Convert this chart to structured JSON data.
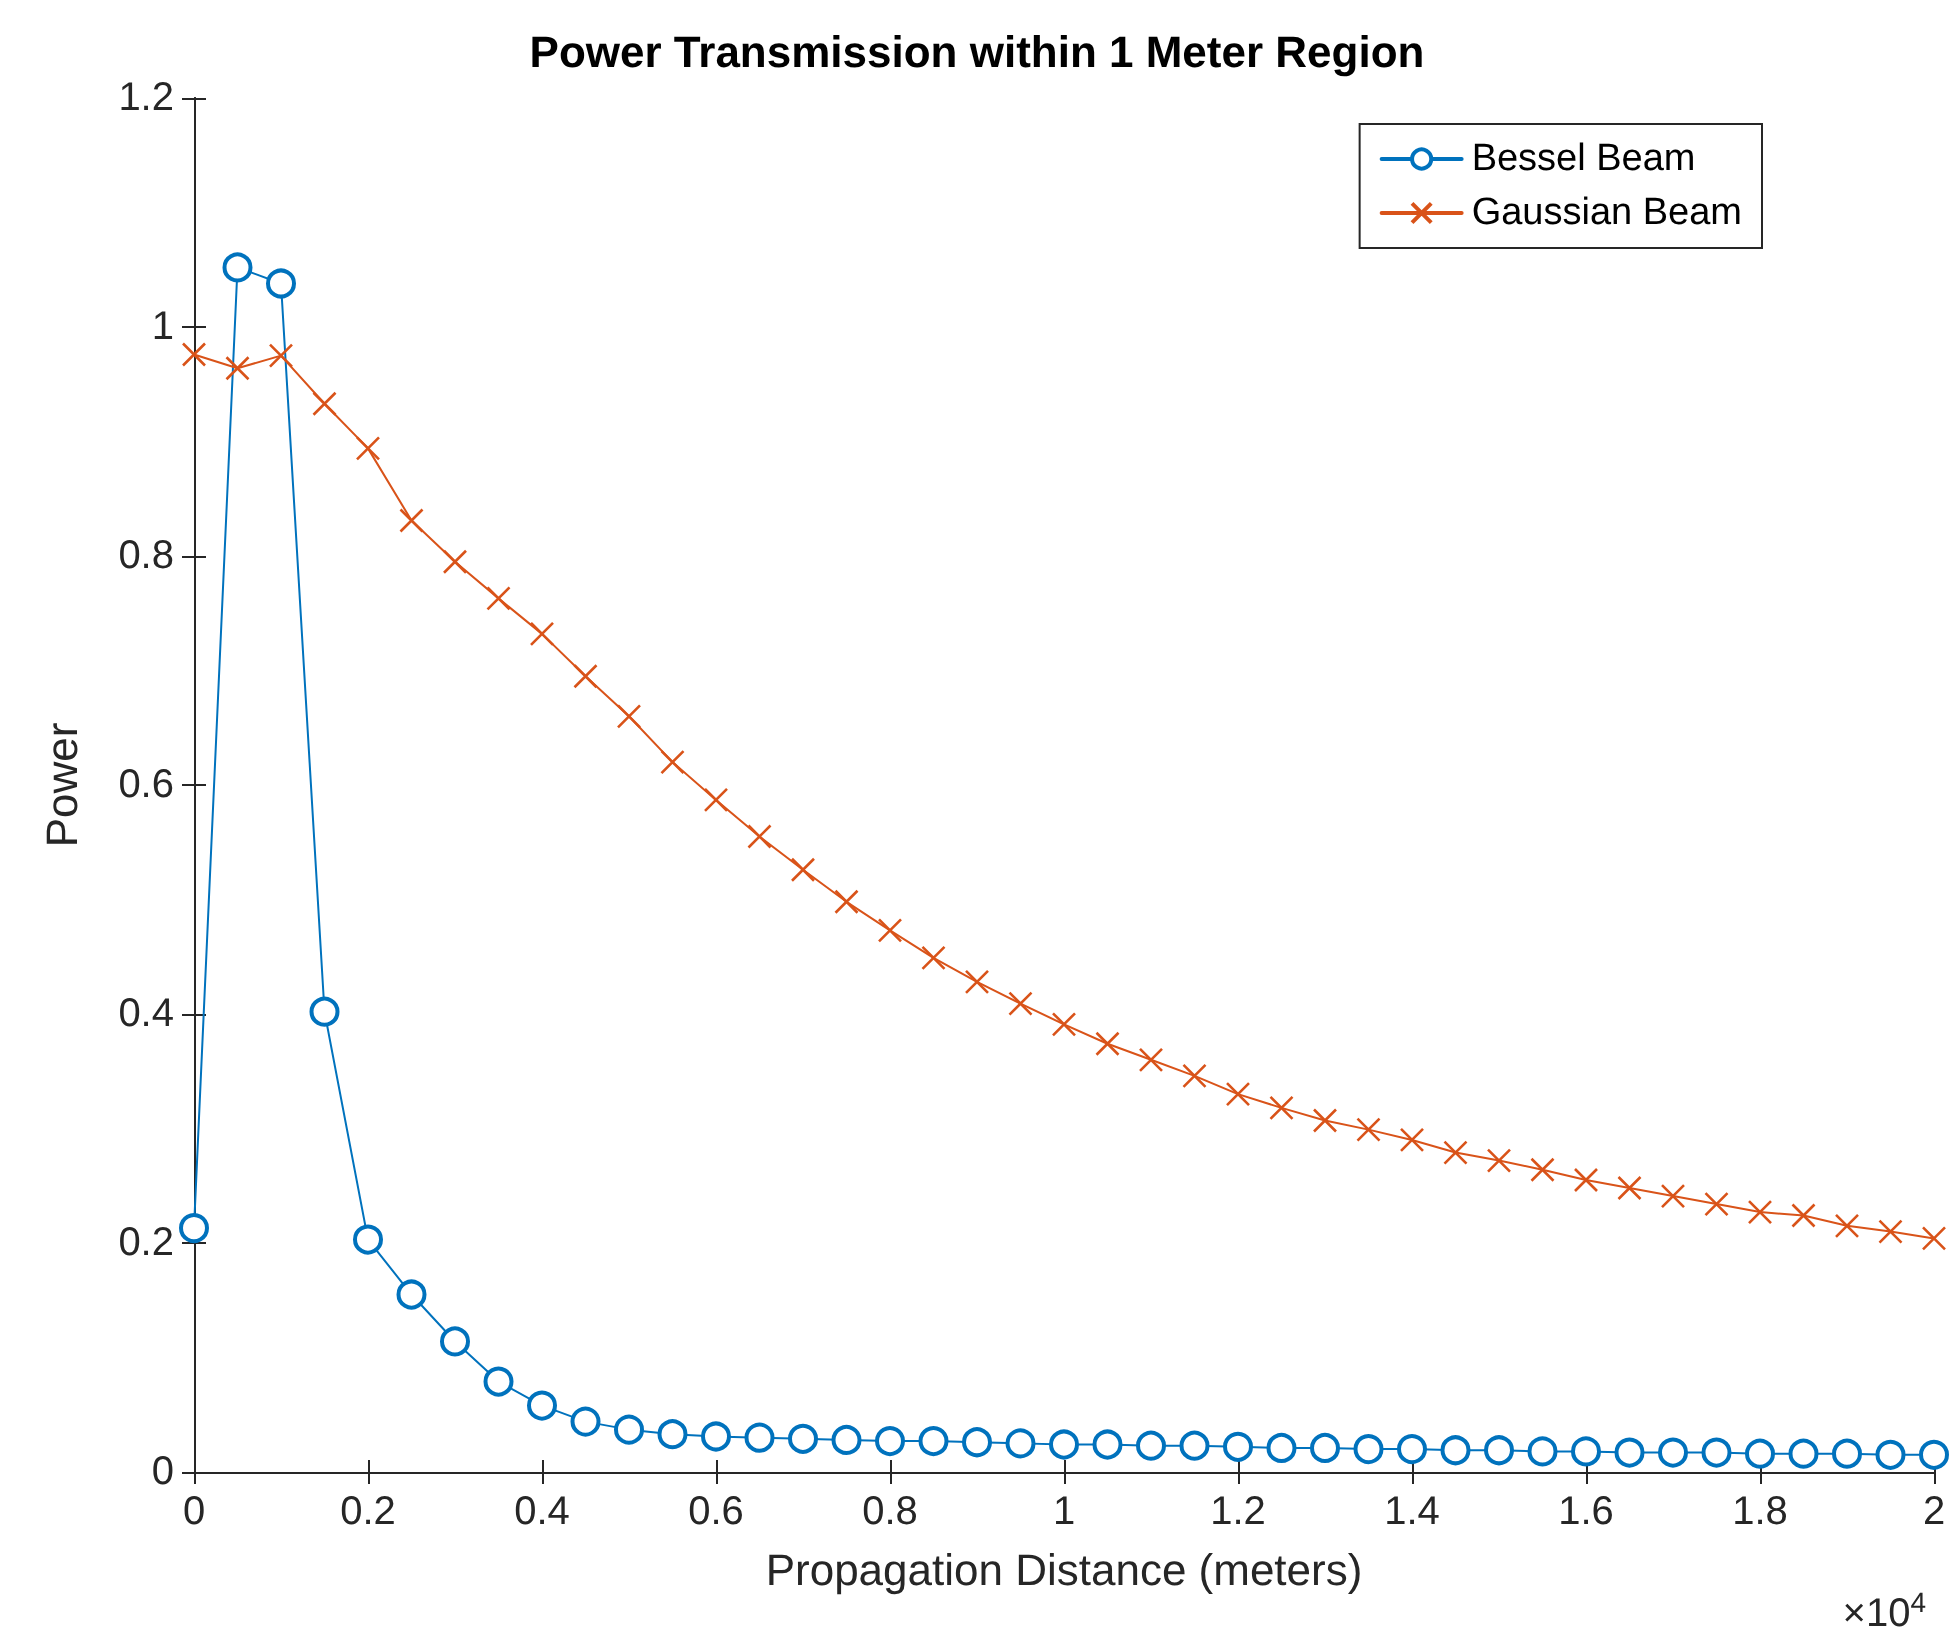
{
  "chart_data": {
    "type": "line",
    "title": "Power Transmission within 1 Meter Region",
    "xlabel": "Propagation Distance (meters)",
    "ylabel": "Power",
    "annotations": [
      "×10$^{4}$"
    ],
    "x": [
      0,
      0.05,
      0.1,
      0.15,
      0.2,
      0.25,
      0.3,
      0.35,
      0.4,
      0.45,
      0.5,
      0.55,
      0.6,
      0.65,
      0.7,
      0.75,
      0.8,
      0.85,
      0.9,
      0.95,
      1,
      1.05,
      1.1,
      1.15,
      1.2,
      1.25,
      1.3,
      1.35,
      1.4,
      1.45,
      1.5,
      1.55,
      1.6,
      1.65,
      1.7,
      1.75,
      1.8,
      1.85,
      1.9,
      1.95,
      2
    ],
    "series": [
      {
        "name": "Bessel Beam",
        "color": "#0072bd",
        "marker": "circle",
        "values": [
          0.213,
          1.052,
          1.038,
          0.402,
          0.203,
          0.155,
          0.114,
          0.079,
          0.058,
          0.044,
          0.037,
          0.033,
          0.031,
          0.03,
          0.029,
          0.028,
          0.027,
          0.027,
          0.026,
          0.025,
          0.024,
          0.024,
          0.023,
          0.023,
          0.022,
          0.021,
          0.021,
          0.02,
          0.02,
          0.019,
          0.019,
          0.018,
          0.018,
          0.017,
          0.017,
          0.017,
          0.016,
          0.016,
          0.016,
          0.015,
          0.015
        ]
      },
      {
        "name": "Gaussian Beam",
        "color": "#d95319",
        "marker": "cross",
        "values": [
          0.976,
          0.964,
          0.975,
          0.933,
          0.894,
          0.831,
          0.795,
          0.763,
          0.732,
          0.695,
          0.66,
          0.62,
          0.587,
          0.555,
          0.526,
          0.498,
          0.473,
          0.449,
          0.428,
          0.409,
          0.391,
          0.374,
          0.36,
          0.346,
          0.33,
          0.318,
          0.307,
          0.299,
          0.29,
          0.279,
          0.272,
          0.264,
          0.255,
          0.248,
          0.241,
          0.234,
          0.227,
          0.224,
          0.215,
          0.21,
          0.204
        ]
      }
    ],
    "xlim": [
      0,
      2
    ],
    "xticks": [
      0,
      0.2,
      0.4,
      0.6,
      0.8,
      1,
      1.2,
      1.4,
      1.6,
      1.8,
      2
    ],
    "ylim": [
      0,
      1.2
    ],
    "yticks": [
      0,
      0.2,
      0.4,
      0.6,
      0.8,
      1,
      1.2
    ],
    "grid": false,
    "legend": "top right",
    "line_style": "solid"
  }
}
